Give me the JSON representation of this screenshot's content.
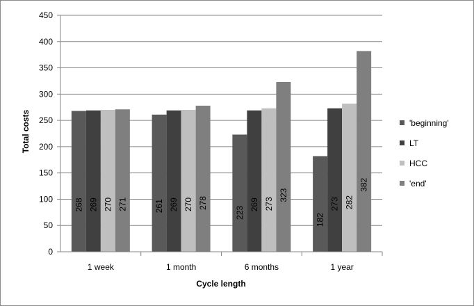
{
  "chart_data": {
    "type": "bar",
    "title": "",
    "xlabel": "Cycle length",
    "ylabel": "Total costs",
    "ylim": [
      0,
      450
    ],
    "yticks": [
      0,
      50,
      100,
      150,
      200,
      250,
      300,
      350,
      400,
      450
    ],
    "grid": true,
    "legend_position": "right",
    "categories": [
      "1 week",
      "1 month",
      "6 months",
      "1 year"
    ],
    "series": [
      {
        "name": "'beginning'",
        "color": "#595959",
        "values": [
          268,
          261,
          223,
          182
        ]
      },
      {
        "name": "LT",
        "color": "#404040",
        "values": [
          269,
          269,
          269,
          273
        ]
      },
      {
        "name": "HCC",
        "color": "#bfbfbf",
        "values": [
          270,
          270,
          273,
          282
        ]
      },
      {
        "name": "'end'",
        "color": "#7f7f7f",
        "values": [
          271,
          278,
          323,
          382
        ]
      }
    ]
  }
}
